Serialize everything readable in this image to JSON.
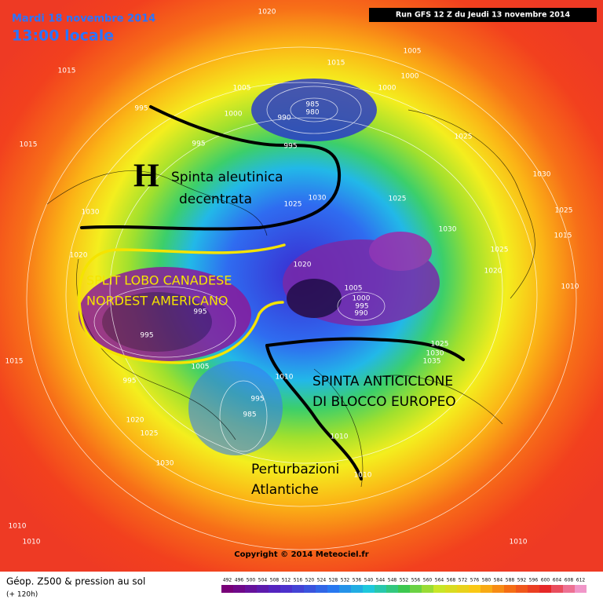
{
  "header": {
    "date": "Mardi 18 novembre 2014",
    "time": "13:00 locale",
    "run": "Run GFS 12 Z du Jeudi 13 novembre 2014"
  },
  "annotations": {
    "high": "H",
    "aleutian_1": "Spinta aleutinica",
    "aleutian_2": "decentrata",
    "split_1": "SPLIT LOBO CANADESE",
    "split_2": "NORDEST AMERICANO",
    "block_1": "SPINTA ANTICICLONE",
    "block_2": "DI BLOCCO EUROPEO",
    "atlantic_1": "Perturbazioni",
    "atlantic_2": "Atlantiche"
  },
  "isobar_labels": [
    1020,
    1015,
    995,
    1005,
    1000,
    990,
    985,
    980,
    1015,
    1005,
    1000,
    1000,
    995,
    995,
    1015,
    1025,
    1030,
    1025,
    1030,
    1025,
    1030,
    1025,
    1015,
    1025,
    1020,
    1010,
    1030,
    1020,
    1020,
    1005,
    1000,
    995,
    990,
    995,
    995,
    1015,
    995,
    1005,
    1010,
    1025,
    1030,
    1035,
    995,
    985,
    1010,
    1010,
    1020,
    1025,
    1030,
    1010,
    1010,
    1010
  ],
  "copyright": "Copyright © 2014 Meteociel.fr",
  "footer": {
    "title": "Géop. Z500 & pression au sol",
    "subtitle": "(+ 120h)"
  },
  "colorbar": {
    "ticks": [
      492,
      496,
      500,
      504,
      508,
      512,
      516,
      520,
      524,
      528,
      532,
      536,
      540,
      544,
      548,
      552,
      556,
      560,
      564,
      568,
      572,
      576,
      580,
      584,
      588,
      592,
      596,
      600,
      604,
      608,
      612
    ]
  }
}
